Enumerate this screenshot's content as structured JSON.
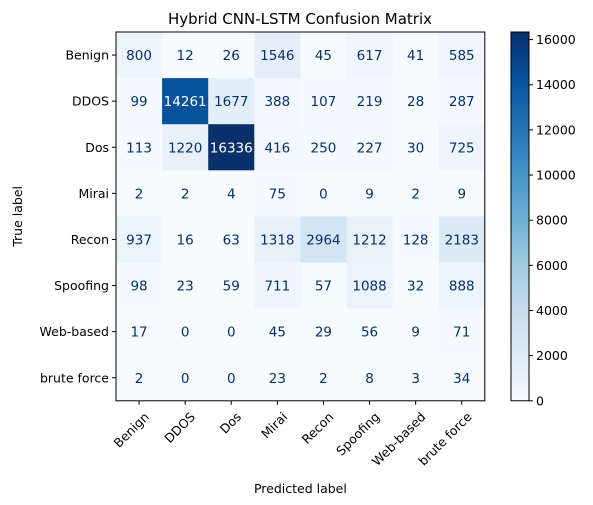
{
  "chart_data": {
    "type": "heatmap",
    "title": "Hybrid CNN-LSTM Confusion Matrix",
    "xlabel": "Predicted label",
    "ylabel": "True label",
    "row_labels": [
      "Benign",
      "DDOS",
      "Dos",
      "Mirai",
      "Recon",
      "Spoofing",
      "Web-based",
      "brute force"
    ],
    "col_labels": [
      "Benign",
      "DDOS",
      "Dos",
      "Mirai",
      "Recon",
      "Spoofing",
      "Web-based",
      "brute force"
    ],
    "matrix": [
      [
        800,
        12,
        26,
        1546,
        45,
        617,
        41,
        585
      ],
      [
        99,
        14261,
        1677,
        388,
        107,
        219,
        28,
        287
      ],
      [
        113,
        1220,
        16336,
        416,
        250,
        227,
        30,
        725
      ],
      [
        2,
        2,
        4,
        75,
        0,
        9,
        2,
        9
      ],
      [
        937,
        16,
        63,
        1318,
        2964,
        1212,
        128,
        2183
      ],
      [
        98,
        23,
        59,
        711,
        57,
        1088,
        32,
        888
      ],
      [
        17,
        0,
        0,
        45,
        29,
        56,
        9,
        71
      ],
      [
        2,
        0,
        0,
        23,
        2,
        8,
        3,
        34
      ]
    ],
    "colormap": "Blues",
    "colorbar": {
      "min": 0,
      "max": 16336,
      "ticks": [
        0,
        2000,
        4000,
        6000,
        8000,
        10000,
        12000,
        14000,
        16000
      ]
    },
    "grid": false
  }
}
